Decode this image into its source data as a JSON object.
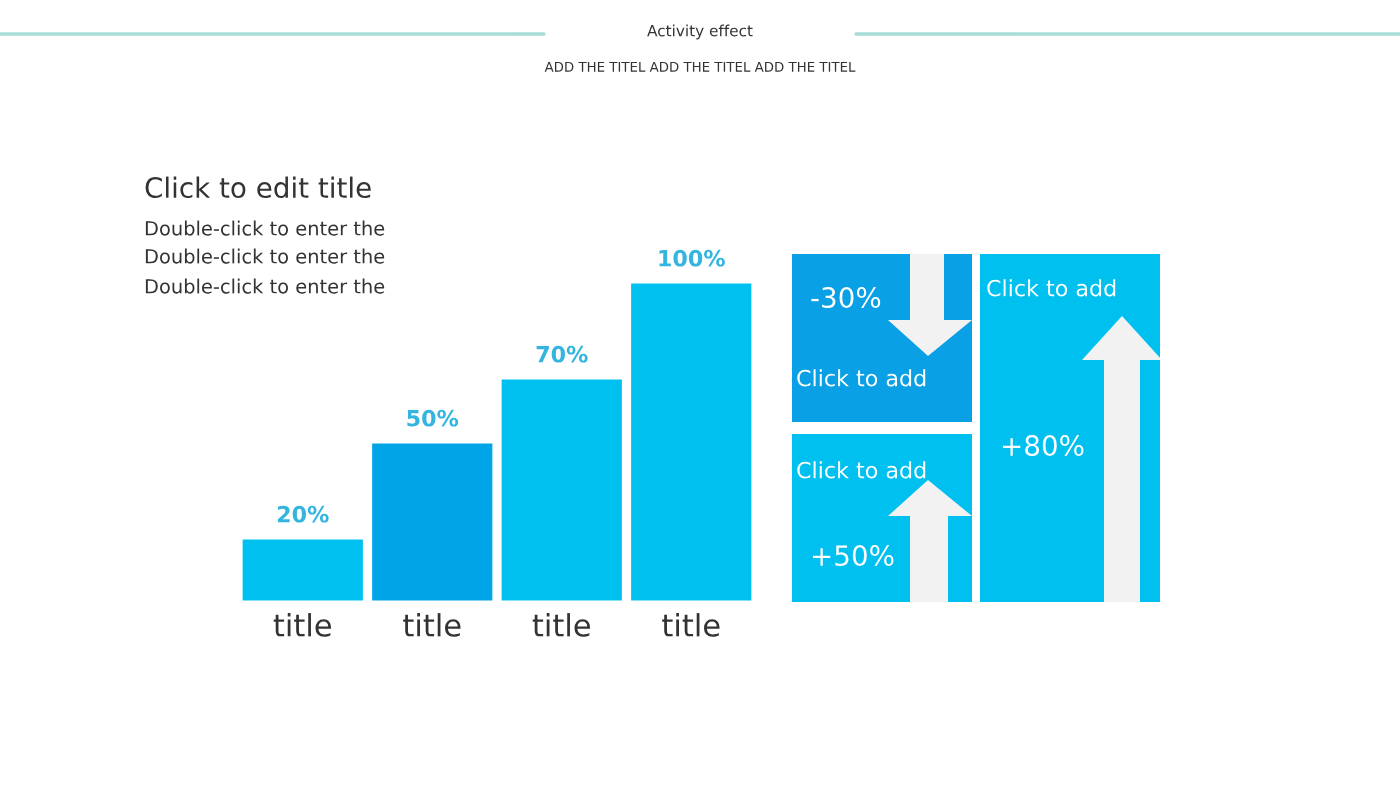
{
  "chart_data": [
    {
      "type": "bar",
      "title": "Click to edit title",
      "annotations": [
        "Activity effect",
        "ADD THE TITEL ADD THE TITEL ADD THE TITEL",
        "Double-click to enter the",
        "Double-click to enter the",
        "Double-click to enter the"
      ],
      "categories": [
        "title",
        "title",
        "title",
        "title"
      ],
      "values": [
        20,
        50,
        70,
        100
      ],
      "colors": [
        "#00c0f0",
        "#00a5e8",
        "#00c0f0",
        "#00c0f0"
      ],
      "value_labels": [
        "20%",
        "50%",
        "70%",
        "100%"
      ],
      "tick_labels": "x"
    },
    {
      "type": "other",
      "annotations": [
        "-30%",
        "Click to add",
        "Click to add",
        "+50%",
        "Click to add",
        "+80%"
      ]
    }
  ]
}
